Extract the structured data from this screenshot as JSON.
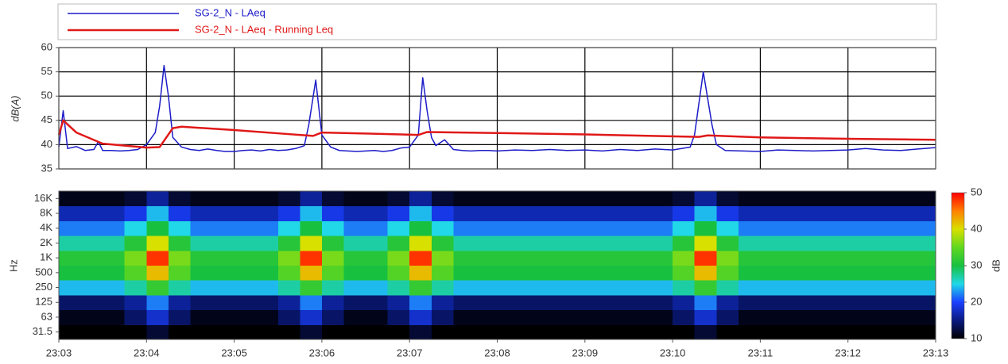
{
  "chart_data": [
    {
      "type": "line",
      "ylabel": "dB(A)",
      "xlim": [
        1383,
        1393
      ],
      "ylim": [
        35,
        60
      ],
      "yticks": [
        35,
        40,
        45,
        50,
        55,
        60
      ],
      "grid": true,
      "series": [
        {
          "name": "SG-2_N - LAeq",
          "color": "#1c1cc8",
          "x": [
            1383,
            1383.05,
            1383.1,
            1383.2,
            1383.3,
            1383.4,
            1383.45,
            1383.5,
            1383.6,
            1383.7,
            1383.8,
            1383.9,
            1384,
            1384.1,
            1384.15,
            1384.2,
            1384.25,
            1384.3,
            1384.4,
            1384.5,
            1384.6,
            1384.7,
            1384.8,
            1384.9,
            1385,
            1385.1,
            1385.2,
            1385.3,
            1385.4,
            1385.5,
            1385.6,
            1385.7,
            1385.8,
            1385.85,
            1385.93,
            1386,
            1386.1,
            1386.2,
            1386.3,
            1386.4,
            1386.5,
            1386.6,
            1386.7,
            1386.8,
            1386.9,
            1387,
            1387.1,
            1387.15,
            1387.2,
            1387.25,
            1387.3,
            1387.4,
            1387.5,
            1387.6,
            1387.7,
            1387.8,
            1387.9,
            1388,
            1388.2,
            1388.4,
            1388.6,
            1388.8,
            1389,
            1389.2,
            1389.4,
            1389.6,
            1389.8,
            1390,
            1390.2,
            1390.25,
            1390.35,
            1390.45,
            1390.5,
            1390.6,
            1390.8,
            1391,
            1391.2,
            1391.4,
            1391.6,
            1391.8,
            1392,
            1392.2,
            1392.4,
            1392.6,
            1392.8,
            1393
          ],
          "values": [
            39.5,
            47,
            39.2,
            39.6,
            38.8,
            39.0,
            40.6,
            38.8,
            38.8,
            38.7,
            38.8,
            39.0,
            40.0,
            42.5,
            48,
            56.3,
            50,
            41.5,
            39.5,
            39.0,
            38.8,
            39.1,
            38.8,
            38.6,
            38.6,
            38.8,
            38.9,
            38.7,
            39.0,
            38.8,
            38.9,
            39.2,
            39.8,
            44,
            53.3,
            42,
            39.5,
            38.8,
            38.7,
            38.6,
            38.7,
            38.8,
            38.6,
            38.8,
            39.3,
            39.5,
            42,
            53.8,
            47,
            41.5,
            39.8,
            41,
            39,
            38.8,
            38.7,
            38.8,
            38.8,
            38.7,
            38.9,
            38.8,
            39.0,
            38.8,
            38.9,
            38.7,
            39.0,
            38.8,
            39.1,
            38.9,
            39.5,
            42,
            55,
            44,
            40,
            38.8,
            38.7,
            38.6,
            38.9,
            38.8,
            38.7,
            38.8,
            38.9,
            39.2,
            38.9,
            38.8,
            39.1,
            39.4
          ]
        },
        {
          "name": "SG-2_N - LAeq - Running Leq",
          "color": "#e01818",
          "x": [
            1383,
            1383.05,
            1383.2,
            1383.5,
            1384,
            1384.15,
            1384.3,
            1384.4,
            1385,
            1385.6,
            1385.9,
            1386,
            1386.5,
            1387.1,
            1387.2,
            1388,
            1389,
            1390.3,
            1390.4,
            1391,
            1392,
            1393
          ],
          "values": [
            42,
            45,
            42.5,
            40.2,
            39.4,
            39.5,
            43.4,
            43.7,
            43,
            42.2,
            41.8,
            42.5,
            42.3,
            42,
            42.6,
            42.4,
            42.1,
            41.6,
            41.9,
            41.5,
            41.2,
            41.0
          ]
        }
      ]
    },
    {
      "type": "heatmap",
      "ylabel": "Hz",
      "colorbar_label": "dB",
      "xlim": [
        1383,
        1393
      ],
      "xticks": [
        {
          "value": 1383,
          "label": "23:03"
        },
        {
          "value": 1384,
          "label": "23:04"
        },
        {
          "value": 1385,
          "label": "23:05"
        },
        {
          "value": 1386,
          "label": "23:06"
        },
        {
          "value": 1387,
          "label": "23:07"
        },
        {
          "value": 1388,
          "label": "23:08"
        },
        {
          "value": 1389,
          "label": "23:09"
        },
        {
          "value": 1390,
          "label": "23:10"
        },
        {
          "value": 1391,
          "label": "23:11"
        },
        {
          "value": 1392,
          "label": "23:12"
        },
        {
          "value": 1393,
          "label": "23:13"
        }
      ],
      "grid": true,
      "categories": [
        "31.5",
        "63",
        "125",
        "250",
        "500",
        "1K",
        "2K",
        "4K",
        "8K",
        "16K"
      ],
      "bins": [
        1383,
        1383.25,
        1383.5,
        1383.75,
        1384,
        1384.25,
        1384.5,
        1384.75,
        1385,
        1385.25,
        1385.5,
        1385.75,
        1386,
        1386.25,
        1386.5,
        1386.75,
        1387,
        1387.25,
        1387.5,
        1387.75,
        1388,
        1388.25,
        1388.5,
        1388.75,
        1389,
        1389.25,
        1389.5,
        1389.75,
        1390,
        1390.25,
        1390.5,
        1390.75,
        1391,
        1391.25,
        1391.5,
        1391.75,
        1392,
        1392.25,
        1392.5,
        1392.75,
        1393
      ],
      "zlim": [
        10,
        50
      ],
      "zticks": [
        10,
        20,
        30,
        40,
        50
      ],
      "colors": [
        "#000000",
        "#0a1a80",
        "#1a40ff",
        "#20d8e8",
        "#18c040",
        "#60d820",
        "#d8e000",
        "#ff8000",
        "#ff0000"
      ],
      "z": [
        [
          10,
          10,
          10,
          10,
          12,
          10,
          10,
          10,
          10,
          10,
          10,
          12,
          10,
          10,
          10,
          10,
          12,
          10,
          10,
          10,
          10,
          10,
          10,
          10,
          10,
          10,
          10,
          10,
          10,
          12,
          10,
          10,
          10,
          10,
          10,
          10,
          10,
          10,
          10,
          10
        ],
        [
          11,
          11,
          11,
          14,
          18,
          14,
          11,
          11,
          11,
          11,
          14,
          18,
          14,
          11,
          11,
          14,
          18,
          14,
          11,
          11,
          11,
          11,
          11,
          11,
          11,
          11,
          11,
          11,
          14,
          18,
          14,
          11,
          11,
          11,
          11,
          11,
          11,
          11,
          11,
          11
        ],
        [
          14,
          14,
          14,
          16,
          22,
          16,
          14,
          14,
          14,
          14,
          16,
          22,
          16,
          14,
          14,
          16,
          22,
          16,
          14,
          14,
          14,
          14,
          14,
          14,
          14,
          14,
          14,
          14,
          16,
          22,
          16,
          14,
          14,
          14,
          14,
          14,
          14,
          14,
          14,
          14
        ],
        [
          24,
          24,
          24,
          27,
          32,
          27,
          24,
          24,
          24,
          24,
          27,
          32,
          27,
          24,
          24,
          27,
          32,
          27,
          24,
          24,
          24,
          24,
          24,
          24,
          24,
          24,
          24,
          24,
          27,
          32,
          27,
          24,
          24,
          24,
          24,
          24,
          24,
          24,
          24,
          24
        ],
        [
          30,
          30,
          30,
          34,
          42,
          34,
          30,
          30,
          30,
          30,
          34,
          42,
          34,
          30,
          30,
          34,
          42,
          34,
          30,
          30,
          30,
          30,
          30,
          30,
          30,
          30,
          30,
          30,
          34,
          42,
          34,
          30,
          30,
          30,
          30,
          30,
          30,
          30,
          30,
          30
        ],
        [
          31,
          31,
          31,
          36,
          48,
          36,
          31,
          31,
          31,
          31,
          36,
          48,
          36,
          31,
          31,
          36,
          48,
          36,
          31,
          31,
          31,
          31,
          31,
          31,
          31,
          31,
          31,
          31,
          36,
          48,
          36,
          31,
          31,
          31,
          31,
          31,
          31,
          31,
          31,
          31
        ],
        [
          27,
          27,
          27,
          31,
          40,
          31,
          27,
          27,
          27,
          27,
          31,
          40,
          31,
          27,
          27,
          31,
          40,
          31,
          27,
          27,
          27,
          27,
          27,
          27,
          27,
          27,
          27,
          27,
          31,
          40,
          31,
          27,
          27,
          27,
          27,
          27,
          27,
          27,
          27,
          27
        ],
        [
          22,
          22,
          22,
          25,
          30,
          25,
          22,
          22,
          22,
          22,
          25,
          30,
          25,
          22,
          22,
          25,
          30,
          25,
          22,
          22,
          22,
          22,
          22,
          22,
          22,
          22,
          22,
          22,
          25,
          30,
          25,
          22,
          22,
          22,
          22,
          22,
          22,
          22,
          22,
          22
        ],
        [
          17,
          17,
          17,
          19,
          24,
          19,
          17,
          17,
          17,
          17,
          19,
          24,
          19,
          17,
          17,
          19,
          24,
          19,
          17,
          17,
          17,
          17,
          17,
          17,
          17,
          17,
          17,
          17,
          19,
          24,
          19,
          17,
          17,
          17,
          17,
          17,
          17,
          17,
          17,
          17
        ],
        [
          11,
          11,
          11,
          12,
          16,
          12,
          11,
          11,
          11,
          11,
          12,
          16,
          12,
          11,
          11,
          12,
          16,
          12,
          11,
          11,
          11,
          11,
          11,
          11,
          11,
          11,
          11,
          11,
          12,
          16,
          12,
          11,
          11,
          11,
          11,
          11,
          11,
          11,
          11,
          11
        ]
      ]
    }
  ]
}
